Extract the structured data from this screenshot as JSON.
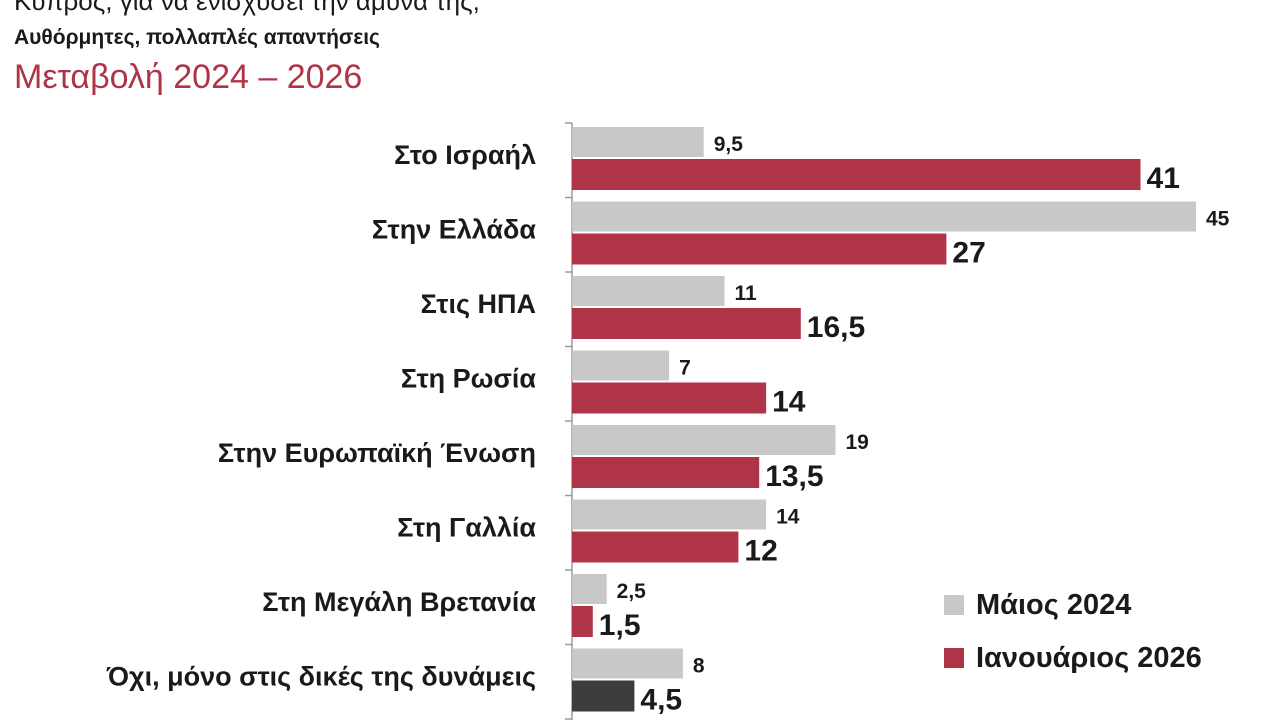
{
  "header": {
    "line1": "Κύπρος, για να ενισχύσει την άμυνά της;",
    "line2": "Αυθόρμητες, πολλαπλές απαντήσεις",
    "line3": "Μεταβολή 2024 – 2026"
  },
  "colors": {
    "accent": "#b03447",
    "series_2024": "#c8c8c8",
    "series_2026": "#b03447",
    "highlight_bar": "#3d3d3d",
    "axis": "#9a9a9a",
    "text": "#1a1a1a"
  },
  "chart_data": {
    "type": "bar",
    "orientation": "horizontal",
    "categories": [
      "Στο Ισραήλ",
      "Στην Ελλάδα",
      "Στις ΗΠΑ",
      "Στη Ρωσία",
      "Στην Ευρωπαϊκή Ένωση",
      "Στη Γαλλία",
      "Στη Μεγάλη Βρετανία",
      "Όχι, μόνο στις δικές της δυνάμεις"
    ],
    "series": [
      {
        "name": "Μάιος 2024",
        "values": [
          9.5,
          45,
          11,
          7,
          19,
          14,
          2.5,
          8
        ],
        "labels": [
          "9,5",
          "45",
          "11",
          "7",
          "19",
          "14",
          "2,5",
          "8"
        ]
      },
      {
        "name": "Ιανουάριος 2026",
        "values": [
          41,
          27,
          16.5,
          14,
          13.5,
          12,
          1.5,
          4.5
        ],
        "labels": [
          "41",
          "27",
          "16,5",
          "14",
          "13,5",
          "12",
          "1,5",
          "4,5"
        ]
      }
    ],
    "xlim": [
      0,
      45
    ],
    "grid": false,
    "legend_position": "bottom-right"
  }
}
